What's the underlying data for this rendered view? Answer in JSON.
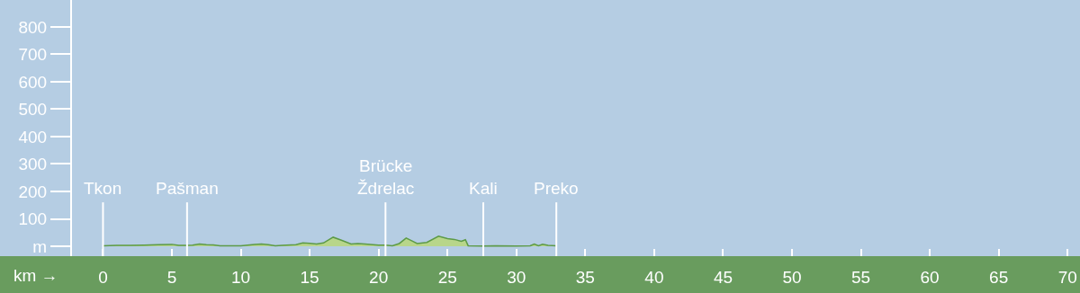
{
  "chart_data": {
    "type": "area",
    "xlabel": "km →",
    "x": [
      0,
      1,
      2,
      3,
      4,
      5,
      5.5,
      6,
      6.5,
      7,
      7.5,
      8,
      8.5,
      10,
      11,
      11.5,
      12,
      12.5,
      13,
      14,
      14.5,
      15,
      15.5,
      16,
      16.7,
      17.3,
      18,
      18.5,
      19,
      20,
      20.5,
      21,
      21.5,
      22,
      22.4,
      22.8,
      23.5,
      24.35,
      25,
      25.5,
      26,
      26.3,
      26.5,
      27.5,
      28.5,
      30,
      31,
      31.3,
      31.6,
      31.9,
      32.3,
      32.9
    ],
    "series": [
      {
        "color": "#b8d68a",
        "values": [
          2,
          3,
          3,
          4,
          6,
          7,
          3,
          3,
          4,
          8,
          6,
          5,
          2,
          2,
          7,
          8,
          6,
          2,
          3,
          6,
          12,
          11,
          8,
          12,
          33,
          22,
          8,
          10,
          8,
          4,
          4,
          2,
          10,
          30,
          20,
          10,
          14,
          37,
          28,
          25,
          18,
          24,
          2,
          1,
          2,
          1,
          2,
          8,
          2,
          7,
          3,
          2
        ]
      }
    ],
    "xlim": [
      -2.25,
      70.9
    ],
    "xticks": [
      0,
      5,
      10,
      15,
      20,
      25,
      30,
      35,
      40,
      45,
      50,
      55,
      60,
      65,
      70
    ],
    "ylim": [
      -36,
      898
    ],
    "yticks": [
      {
        "value": 0,
        "label": "m"
      },
      100,
      200,
      300,
      400,
      500,
      600,
      700,
      800
    ],
    "ref_lines": [
      {
        "axis": "x",
        "value": 0,
        "label": "Tkon",
        "color": "#ffffff"
      },
      {
        "axis": "x",
        "value": 6.1,
        "label": "Pašman",
        "color": "#ffffff"
      },
      {
        "axis": "x",
        "value": 20.5,
        "label": "Brücke\nŽdrelac",
        "color": "#ffffff"
      },
      {
        "axis": "x",
        "value": 27.6,
        "label": "Kali",
        "color": "#ffffff"
      },
      {
        "axis": "x",
        "value": 32.9,
        "label": "Preko",
        "color": "#ffffff"
      }
    ],
    "grid": false
  }
}
